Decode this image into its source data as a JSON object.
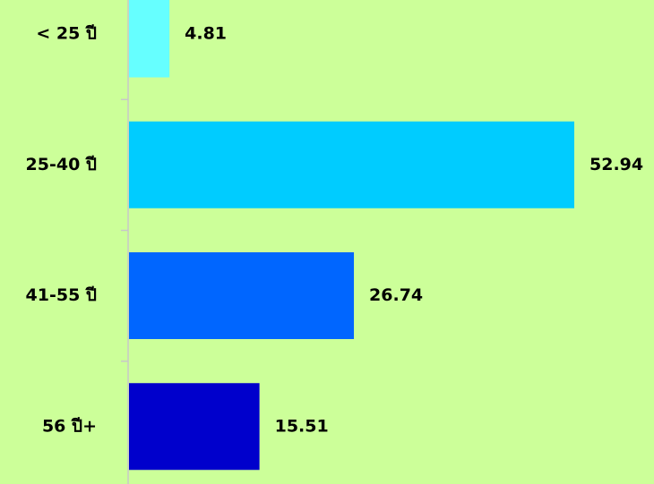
{
  "chart_data": {
    "type": "bar",
    "orientation": "horizontal",
    "categories": [
      "< 25 ปี",
      "25-40 ปี",
      "41-55 ปี",
      "56 ปี+"
    ],
    "values": [
      4.81,
      52.94,
      26.74,
      15.51
    ],
    "value_labels": [
      "4.81",
      "52.94",
      "26.74",
      "15.51"
    ],
    "colors": [
      "#66ffff",
      "#00ccff",
      "#0066ff",
      "#0000cc"
    ],
    "xlim": [
      0,
      52.94
    ],
    "title": "",
    "xlabel": "",
    "ylabel": "",
    "grid": false,
    "legend": "none",
    "background": "#ccff99",
    "axis_color": "#c8c8c8"
  }
}
